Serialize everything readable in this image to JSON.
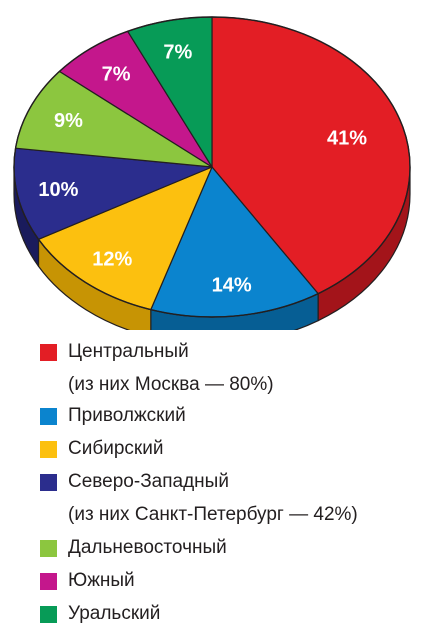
{
  "chart_data": {
    "type": "pie",
    "slices": [
      {
        "label": "Центральный",
        "note": "(из них Москва — 80%)",
        "value": 41,
        "display": "41%",
        "color": "#e31e25",
        "side": "#a3141a"
      },
      {
        "label": "Приволжский",
        "value": 14,
        "display": "14%",
        "color": "#0b84ce",
        "side": "#065e94"
      },
      {
        "label": "Сибирский",
        "value": 12,
        "display": "12%",
        "color": "#fcc00f",
        "side": "#c79404"
      },
      {
        "label": "Северо-Западный",
        "note": "(из них Санкт-Петербург — 42%)",
        "value": 10,
        "display": "10%",
        "color": "#2b2d8d",
        "side": "#1a1b5c"
      },
      {
        "label": "Дальневосточный",
        "value": 9,
        "display": "9%",
        "color": "#8cc63f",
        "side": "#5f8a27"
      },
      {
        "label": "Южный",
        "value": 7,
        "display": "7%",
        "color": "#c4178c",
        "side": "#880f61"
      },
      {
        "label": "Уральский",
        "value": 7,
        "display": "7%",
        "color": "#079b57",
        "side": "#046a3b"
      }
    ],
    "legend_position": "bottom"
  }
}
